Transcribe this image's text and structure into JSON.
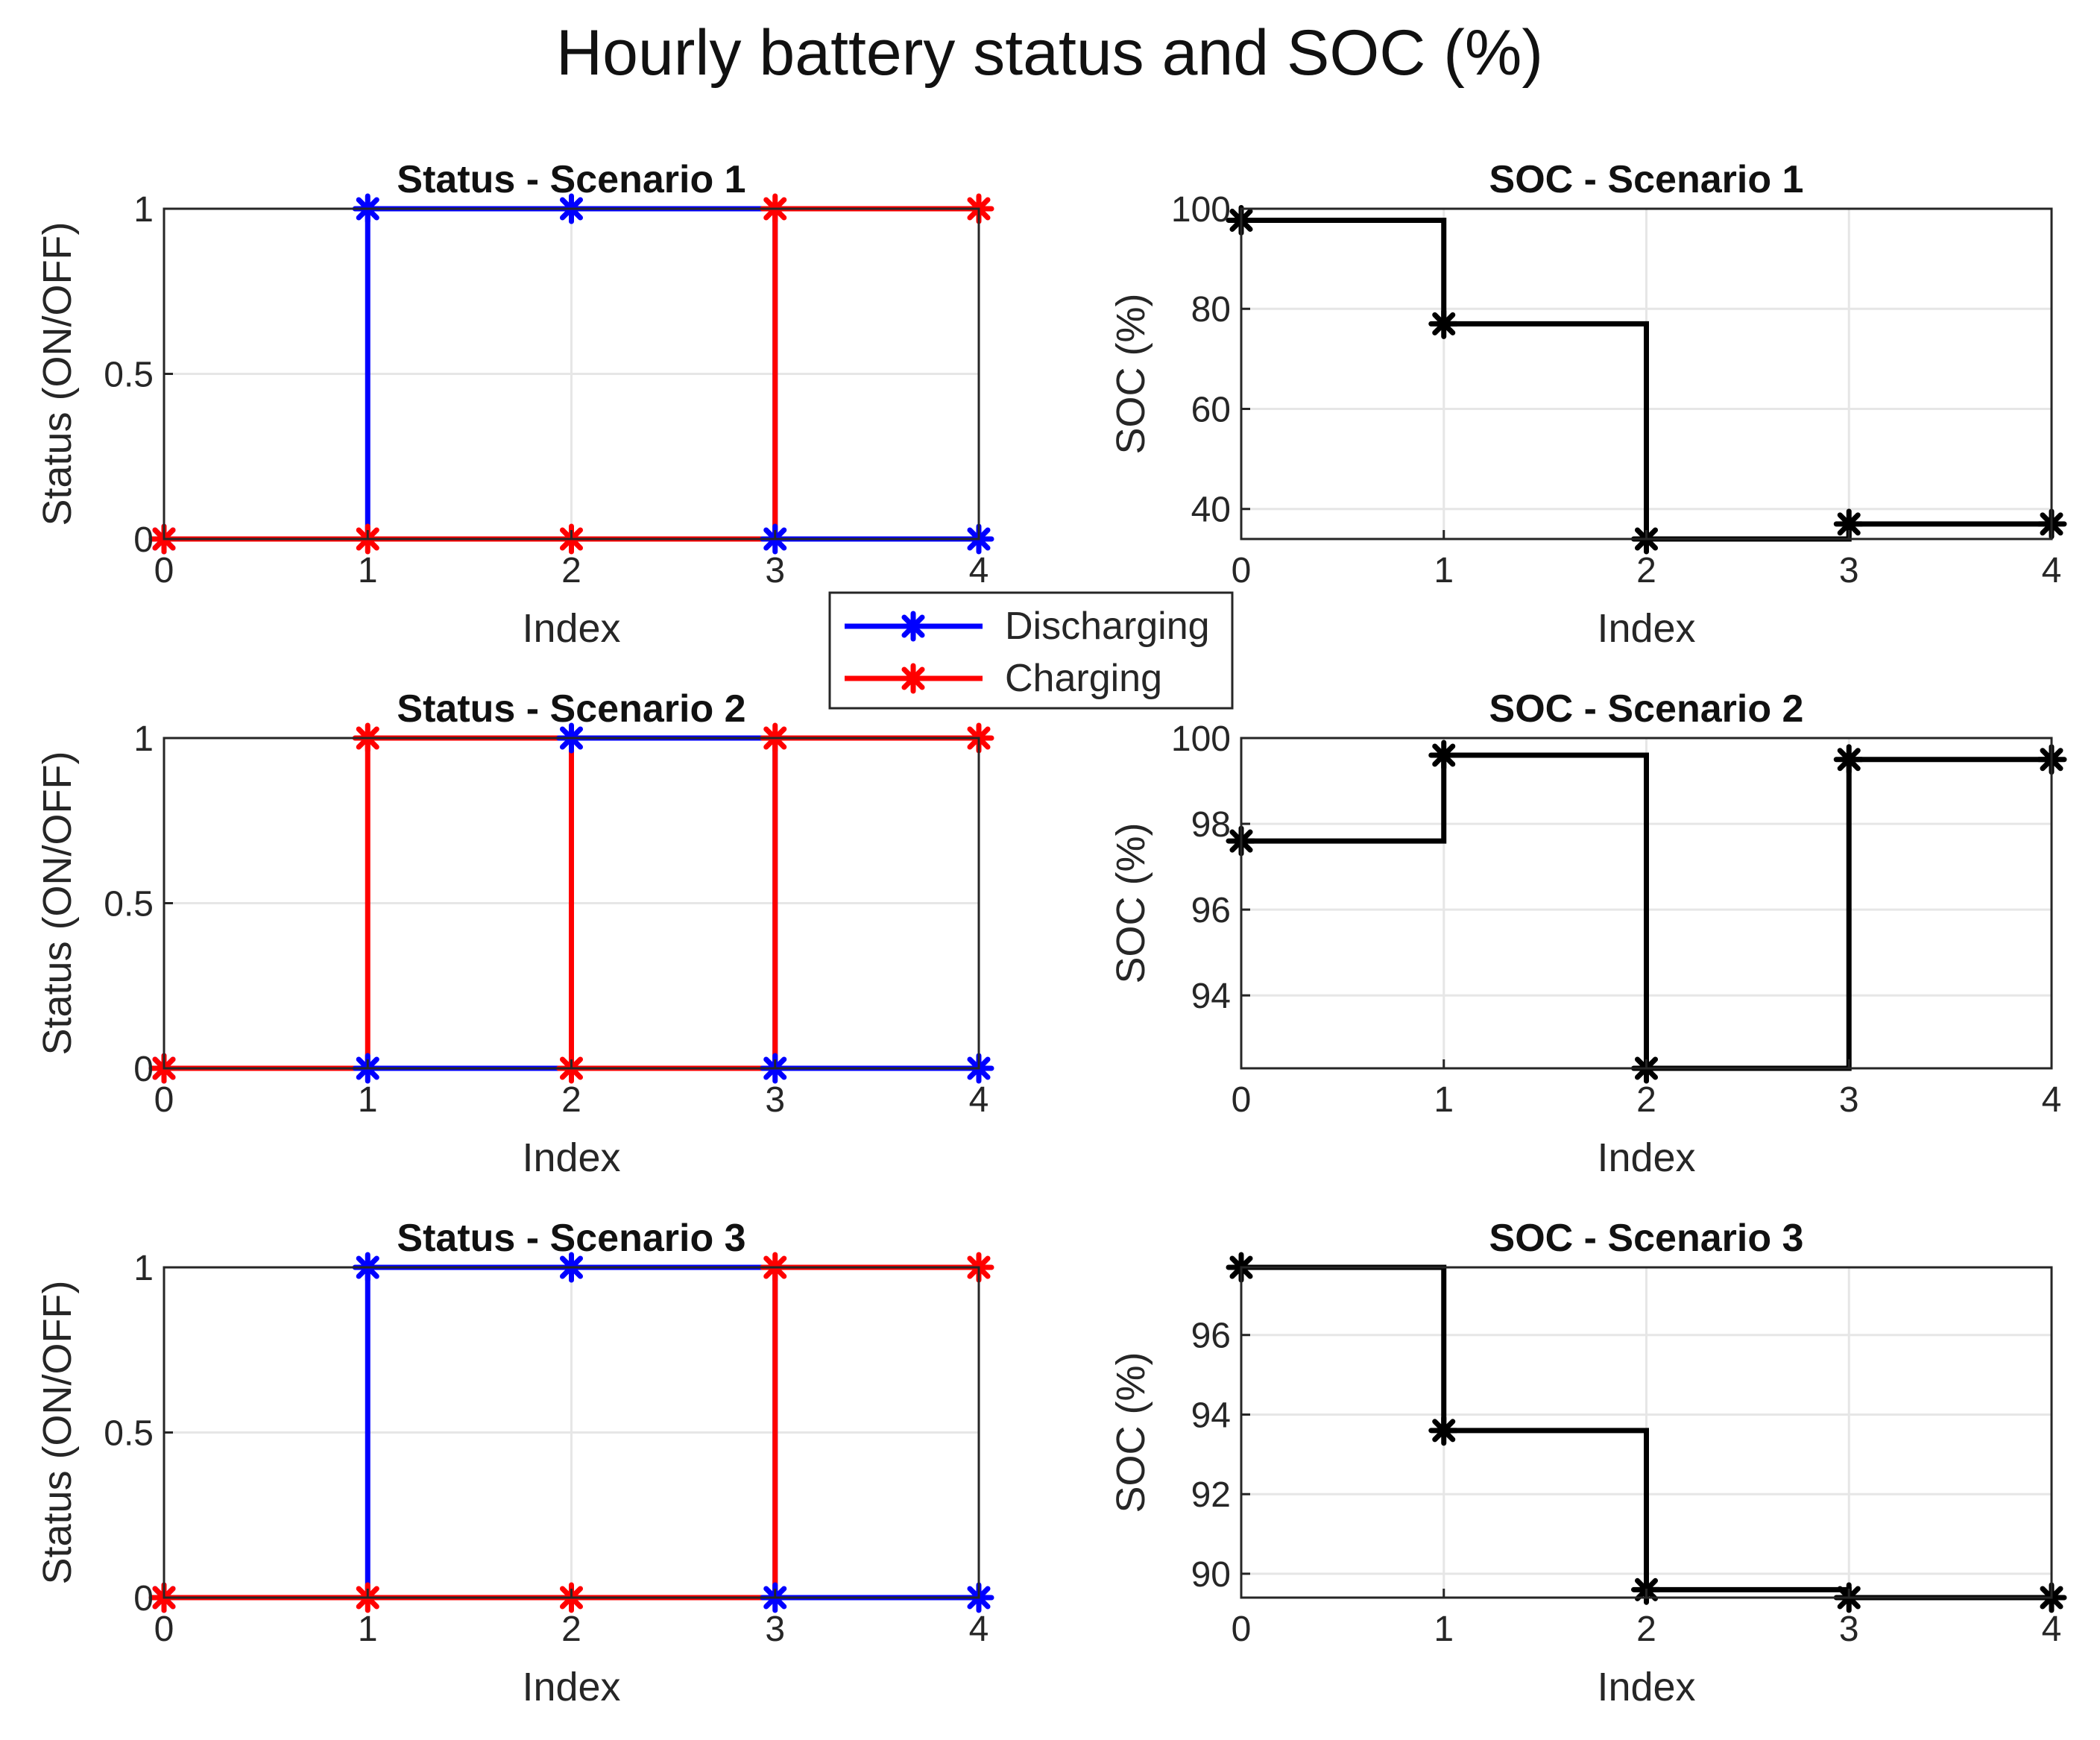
{
  "figure": {
    "title": "Hourly battery status and SOC (%)"
  },
  "legend": {
    "placement": "center",
    "entries": [
      {
        "label": "Discharging",
        "color": "#0000ff"
      },
      {
        "label": "Charging",
        "color": "#ff0000"
      }
    ]
  },
  "colors": {
    "discharging": "#0000ff",
    "charging": "#ff0000",
    "soc": "#000000",
    "grid": "#e6e6e6"
  },
  "chart_data": [
    {
      "id": "status-1",
      "type": "line",
      "step": true,
      "title": "Status - Scenario 1",
      "xlabel": "Index",
      "ylabel": "Status (ON/OFF)",
      "xlim": [
        0,
        4
      ],
      "ylim": [
        0,
        1
      ],
      "xticks": [
        0,
        1,
        2,
        3,
        4
      ],
      "yticks": [
        0,
        0.5,
        1
      ],
      "ytick_labels": [
        "0",
        "0.5",
        "1"
      ],
      "grid": true,
      "x": [
        0,
        1,
        2,
        3,
        4
      ],
      "series": [
        {
          "name": "Discharging",
          "color": "#0000ff",
          "values": [
            0,
            1,
            1,
            0,
            0
          ]
        },
        {
          "name": "Charging",
          "color": "#ff0000",
          "values": [
            0,
            0,
            0,
            1,
            1
          ]
        }
      ]
    },
    {
      "id": "soc-1",
      "type": "line",
      "step": true,
      "title": "SOC - Scenario 1",
      "xlabel": "Index",
      "ylabel": "SOC (%)",
      "xlim": [
        0,
        4
      ],
      "ylim": [
        34,
        100
      ],
      "xticks": [
        0,
        1,
        2,
        3,
        4
      ],
      "yticks": [
        40,
        60,
        80,
        100
      ],
      "ytick_labels": [
        "40",
        "60",
        "80",
        "100"
      ],
      "grid": true,
      "x": [
        0,
        1,
        2,
        3,
        4
      ],
      "series": [
        {
          "name": "SOC",
          "color": "#000000",
          "values": [
            97.7,
            77,
            34,
            37,
            37
          ]
        }
      ]
    },
    {
      "id": "status-2",
      "type": "line",
      "step": true,
      "title": "Status - Scenario 2",
      "xlabel": "Index",
      "ylabel": "Status (ON/OFF)",
      "xlim": [
        0,
        4
      ],
      "ylim": [
        0,
        1
      ],
      "xticks": [
        0,
        1,
        2,
        3,
        4
      ],
      "yticks": [
        0,
        0.5,
        1
      ],
      "ytick_labels": [
        "0",
        "0.5",
        "1"
      ],
      "grid": true,
      "x": [
        0,
        1,
        2,
        3,
        4
      ],
      "series": [
        {
          "name": "Discharging",
          "color": "#0000ff",
          "values": [
            0,
            0,
            1,
            0,
            0
          ]
        },
        {
          "name": "Charging",
          "color": "#ff0000",
          "values": [
            0,
            1,
            0,
            1,
            1
          ]
        }
      ]
    },
    {
      "id": "soc-2",
      "type": "line",
      "step": true,
      "title": "SOC - Scenario 2",
      "xlabel": "Index",
      "ylabel": "SOC (%)",
      "xlim": [
        0,
        4
      ],
      "ylim": [
        92.3,
        100
      ],
      "xticks": [
        0,
        1,
        2,
        3,
        4
      ],
      "yticks": [
        94,
        96,
        98,
        100
      ],
      "ytick_labels": [
        "94",
        "96",
        "98",
        "100"
      ],
      "grid": true,
      "x": [
        0,
        1,
        2,
        3,
        4
      ],
      "series": [
        {
          "name": "SOC",
          "color": "#000000",
          "values": [
            97.6,
            99.6,
            92.3,
            99.5,
            99.5
          ]
        }
      ]
    },
    {
      "id": "status-3",
      "type": "line",
      "step": true,
      "title": "Status - Scenario 3",
      "xlabel": "Index",
      "ylabel": "Status (ON/OFF)",
      "xlim": [
        0,
        4
      ],
      "ylim": [
        0,
        1
      ],
      "xticks": [
        0,
        1,
        2,
        3,
        4
      ],
      "yticks": [
        0,
        0.5,
        1
      ],
      "ytick_labels": [
        "0",
        "0.5",
        "1"
      ],
      "grid": true,
      "x": [
        0,
        1,
        2,
        3,
        4
      ],
      "series": [
        {
          "name": "Discharging",
          "color": "#0000ff",
          "values": [
            0,
            1,
            1,
            0,
            0
          ]
        },
        {
          "name": "Charging",
          "color": "#ff0000",
          "values": [
            0,
            0,
            0,
            1,
            1
          ]
        }
      ]
    },
    {
      "id": "soc-3",
      "type": "line",
      "step": true,
      "title": "SOC - Scenario 3",
      "xlabel": "Index",
      "ylabel": "SOC (%)",
      "xlim": [
        0,
        4
      ],
      "ylim": [
        89.4,
        97.7
      ],
      "xticks": [
        0,
        1,
        2,
        3,
        4
      ],
      "yticks": [
        90,
        92,
        94,
        96
      ],
      "ytick_labels": [
        "90",
        "92",
        "94",
        "96"
      ],
      "grid": true,
      "x": [
        0,
        1,
        2,
        3,
        4
      ],
      "series": [
        {
          "name": "SOC",
          "color": "#000000",
          "values": [
            97.7,
            93.6,
            89.6,
            89.4,
            89.4
          ]
        }
      ]
    }
  ]
}
